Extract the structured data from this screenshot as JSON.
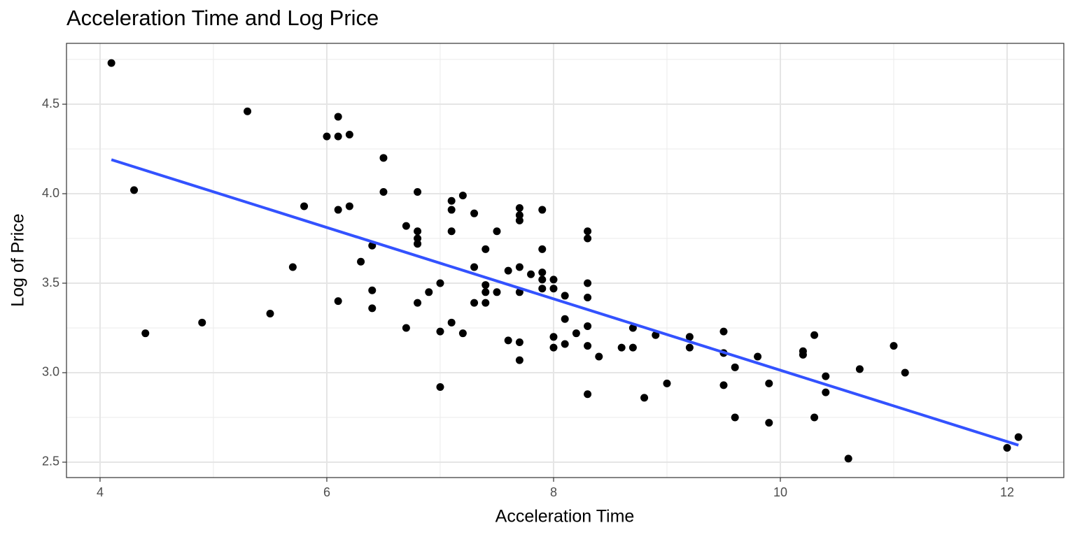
{
  "chart_data": {
    "type": "scatter",
    "title": "Acceleration Time and Log Price",
    "x_label": "Acceleration Time",
    "y_label": "Log of Price",
    "x": [
      4.1,
      4.3,
      4.4,
      4.9,
      5.3,
      5.5,
      5.7,
      5.8,
      6.0,
      6.1,
      6.1,
      6.2,
      6.1,
      6.2,
      6.1,
      6.3,
      6.4,
      6.4,
      6.4,
      6.5,
      6.5,
      6.7,
      6.7,
      6.8,
      6.8,
      6.8,
      6.8,
      6.8,
      6.9,
      7.0,
      7.0,
      7.0,
      7.1,
      7.1,
      7.1,
      7.1,
      7.2,
      7.2,
      7.3,
      7.3,
      7.3,
      7.4,
      7.4,
      7.4,
      7.4,
      7.5,
      7.5,
      7.6,
      7.6,
      7.7,
      7.7,
      7.7,
      7.7,
      7.7,
      7.7,
      7.7,
      7.8,
      7.9,
      7.9,
      7.9,
      7.9,
      7.9,
      8.0,
      8.0,
      8.0,
      8.0,
      8.1,
      8.1,
      8.1,
      8.2,
      8.3,
      8.3,
      8.3,
      8.3,
      8.3,
      8.3,
      8.3,
      8.4,
      8.6,
      8.7,
      8.7,
      8.8,
      8.9,
      9.0,
      9.2,
      9.2,
      9.5,
      9.5,
      9.5,
      9.6,
      9.6,
      9.8,
      9.9,
      9.9,
      10.2,
      10.2,
      10.3,
      10.3,
      10.4,
      10.4,
      10.6,
      10.7,
      11.0,
      11.1,
      12.0,
      12.1
    ],
    "values": [
      4.73,
      4.02,
      3.22,
      3.28,
      4.46,
      3.33,
      3.59,
      3.93,
      4.32,
      4.43,
      4.32,
      4.33,
      3.91,
      3.93,
      3.4,
      3.62,
      3.71,
      3.46,
      3.36,
      4.2,
      4.01,
      3.82,
      3.25,
      4.01,
      3.79,
      3.75,
      3.72,
      3.39,
      3.45,
      3.5,
      3.23,
      2.92,
      3.96,
      3.91,
      3.79,
      3.28,
      3.99,
      3.22,
      3.89,
      3.59,
      3.39,
      3.69,
      3.49,
      3.45,
      3.39,
      3.79,
      3.45,
      3.57,
      3.18,
      3.92,
      3.88,
      3.85,
      3.59,
      3.45,
      3.17,
      3.07,
      3.55,
      3.91,
      3.69,
      3.56,
      3.52,
      3.47,
      3.52,
      3.47,
      3.2,
      3.14,
      3.43,
      3.3,
      3.16,
      3.22,
      3.79,
      3.75,
      3.5,
      3.42,
      3.26,
      3.15,
      2.88,
      3.09,
      3.14,
      3.25,
      3.14,
      2.86,
      3.21,
      2.94,
      3.2,
      3.14,
      3.23,
      3.11,
      2.93,
      3.03,
      2.75,
      3.09,
      2.94,
      2.72,
      3.12,
      3.1,
      3.21,
      2.75,
      2.98,
      2.89,
      2.52,
      3.02,
      3.15,
      3.0,
      2.58,
      2.64
    ],
    "color": "#000000",
    "fit": {
      "x": [
        4.1,
        12.1
      ],
      "values": [
        4.19,
        2.595
      ],
      "color": "#3352ff"
    },
    "xlim": [
      3.704,
      12.5
    ],
    "ylim": [
      2.414,
      4.84
    ],
    "xticks": [
      4,
      6,
      8,
      10,
      12
    ],
    "yticks": [
      2.5,
      {
        "value": 3,
        "label": "3.0"
      },
      3.5,
      {
        "value": 4,
        "label": "4.0"
      },
      4.5
    ],
    "x_minor_grid": [
      5,
      7,
      9,
      11
    ],
    "y_minor_grid": [
      2.75,
      3.25,
      3.75,
      4.25,
      4.75
    ],
    "grid": true
  }
}
